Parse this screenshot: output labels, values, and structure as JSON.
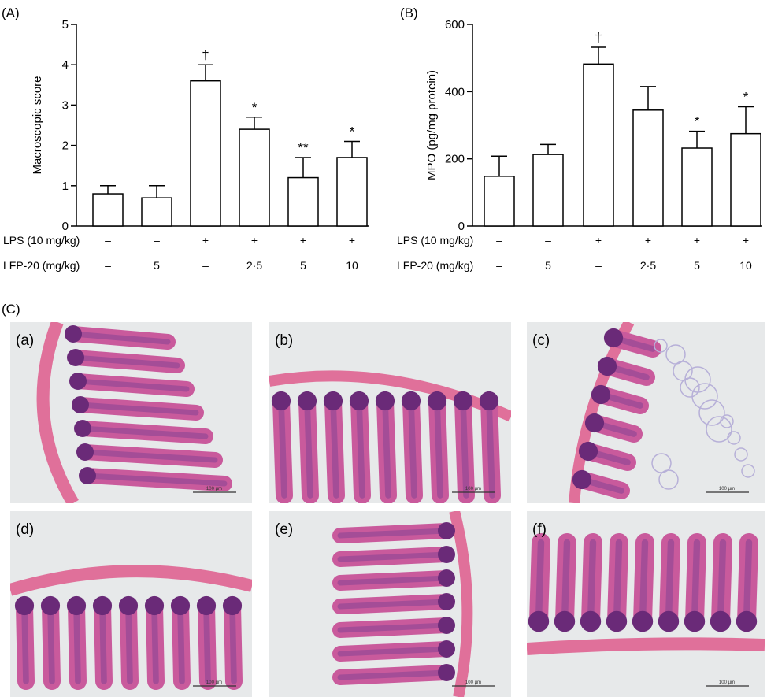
{
  "panel_labels": {
    "A": "(A)",
    "B": "(B)",
    "C": "(C)"
  },
  "conditions": {
    "row_labels": [
      "LPS (10 mg/kg)",
      "LFP-20 (mg/kg)"
    ],
    "lps": [
      "–",
      "–",
      "+",
      "+",
      "+",
      "+"
    ],
    "lfp20": [
      "–",
      "5",
      "–",
      "2·5",
      "5",
      "10"
    ]
  },
  "chart_data": [
    {
      "type": "bar",
      "panel": "(A)",
      "ylabel": "Macroscopic score",
      "xlabel": "",
      "ylim": [
        0,
        5
      ],
      "yticks": [
        0,
        1,
        2,
        3,
        4,
        5
      ],
      "grid": false,
      "values": [
        0.8,
        0.7,
        3.6,
        2.4,
        1.2,
        1.7
      ],
      "errors": [
        0.2,
        0.3,
        0.4,
        0.3,
        0.5,
        0.4
      ],
      "markers": [
        "",
        "",
        "†",
        "*",
        "**",
        "*"
      ],
      "bar_fill": "#ffffff",
      "bar_stroke": "#000000"
    },
    {
      "type": "bar",
      "panel": "(B)",
      "ylabel": "MPO (pg/mg protein)",
      "xlabel": "",
      "ylim": [
        0,
        600
      ],
      "yticks": [
        0,
        200,
        400,
        600
      ],
      "grid": false,
      "values": [
        148,
        213,
        482,
        345,
        232,
        275
      ],
      "errors": [
        60,
        30,
        50,
        70,
        50,
        80
      ],
      "markers": [
        "",
        "",
        "†",
        "",
        "*",
        "*"
      ],
      "bar_fill": "#ffffff",
      "bar_stroke": "#000000"
    }
  ],
  "micrographs": {
    "labels": [
      "(a)",
      "(b)",
      "(c)",
      "(d)",
      "(e)",
      "(f)"
    ],
    "scale_text": "100 µm",
    "colors": {
      "background": "#e7e9ea",
      "muscle": "#e0709a",
      "mucosa": "#c95a9c",
      "crypt": "#6a2a78",
      "lamina": "#9c4a96"
    }
  }
}
